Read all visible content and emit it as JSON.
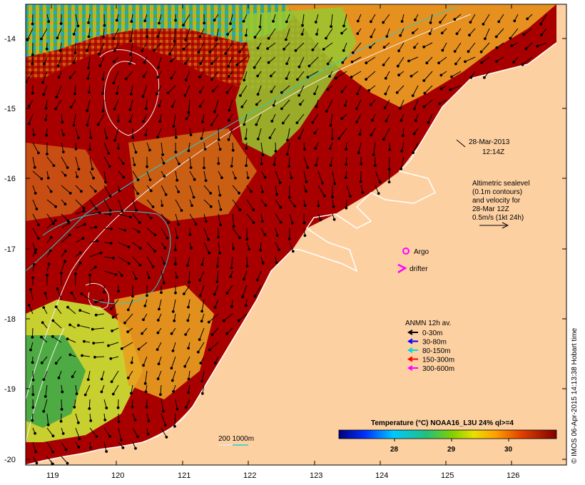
{
  "map": {
    "date_label": "28-Mar-2013",
    "time_label": "12:14Z",
    "altimetric_lines": [
      "Altimetric sealevel",
      "(0.1m contours)",
      "and velocity for",
      "28-Mar 12Z",
      "0.5m/s (1kt 24h)"
    ],
    "argo_label": "Argo",
    "drifter_label": "drifter",
    "anmn_title": "ANMN 12h av.",
    "anmn_legend": [
      {
        "label": "0-30m",
        "color": "#000000"
      },
      {
        "label": "30-80m",
        "color": "#0000ff"
      },
      {
        "label": "80-150m",
        "color": "#00d8d8"
      },
      {
        "label": "150-300m",
        "color": "#ff0000"
      },
      {
        "label": "300-600m",
        "color": "#ff00ff"
      }
    ],
    "isobath_label": "200  1000m",
    "colorbar": {
      "title": "Temperature (°C) NOAA16_L3U 24% ql>=4",
      "ticks": [
        "28",
        "29",
        "30"
      ]
    },
    "x_ticks": [
      "119",
      "120",
      "121",
      "122",
      "123",
      "124",
      "125",
      "126"
    ],
    "y_ticks": [
      "-14",
      "-15",
      "-16",
      "-17",
      "-18",
      "-19",
      "-20"
    ],
    "credit": "© IMOS 06-Apr-2015 14:13:38 Hobart time",
    "colors": {
      "land": "#fdd0a2",
      "hot": "#990000",
      "warm": "#e07a1a",
      "mid": "#c8d820",
      "cool": "#28a050"
    }
  }
}
